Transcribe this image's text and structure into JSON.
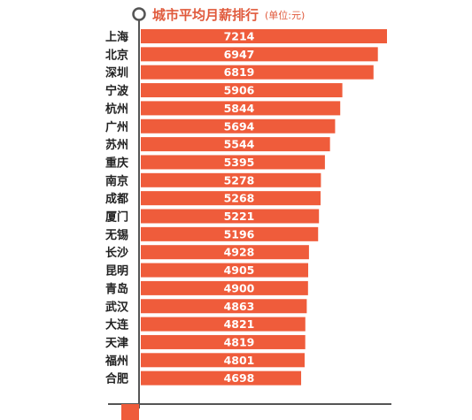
{
  "colors": {
    "bar": "#ef5c3b",
    "title": "#e05a3c",
    "axis": "#555555",
    "label": "#222222",
    "value_text": "#ffffff"
  },
  "icons": {
    "title_marker": "circle-marker-icon"
  },
  "chart_data": {
    "type": "bar",
    "orientation": "horizontal",
    "title": "城市平均月薪排行",
    "subtitle": "(单位:元)",
    "xlabel": "",
    "ylabel": "",
    "xlim": [
      0,
      7214
    ],
    "grid": false,
    "legend": "none",
    "categories": [
      "上海",
      "北京",
      "深圳",
      "宁波",
      "杭州",
      "广州",
      "苏州",
      "重庆",
      "南京",
      "成都",
      "厦门",
      "无锡",
      "长沙",
      "昆明",
      "青岛",
      "武汉",
      "大连",
      "天津",
      "福州",
      "合肥"
    ],
    "values": [
      7214,
      6947,
      6819,
      5906,
      5844,
      5694,
      5544,
      5395,
      5278,
      5268,
      5221,
      5196,
      4928,
      4905,
      4900,
      4863,
      4821,
      4819,
      4801,
      4698
    ],
    "value_labels": [
      "7214",
      "6947",
      "6819",
      "5906",
      "5844",
      "5694",
      "5544",
      "5395",
      "5278",
      "5268",
      "5221",
      "5196",
      "4928",
      "4905",
      "4900",
      "4863",
      "4821",
      "4819",
      "4801",
      "4698"
    ]
  }
}
